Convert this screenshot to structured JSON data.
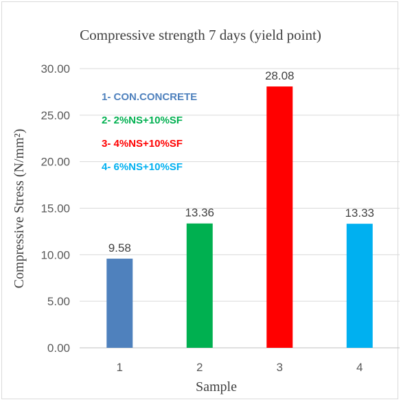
{
  "chart_data": {
    "type": "bar",
    "title": "Compressive strength 7 days (yield point)",
    "xlabel": "Sample",
    "ylabel": "Compressive Stress (N/mm²)",
    "categories": [
      "1",
      "2",
      "3",
      "4"
    ],
    "values": [
      9.58,
      13.36,
      28.08,
      13.33
    ],
    "data_labels": [
      "9.58",
      "13.36",
      "28.08",
      "13.33"
    ],
    "colors": [
      "#4f81bd",
      "#00b050",
      "#ff0000",
      "#00b0f0"
    ],
    "ylim": [
      0,
      30
    ],
    "yticks": [
      "0.00",
      "5.00",
      "10.00",
      "15.00",
      "20.00",
      "25.00",
      "30.00"
    ],
    "grid": "horizontal",
    "legend": {
      "placement": "top-left",
      "entries": [
        {
          "label": "1- CON.CONCRETE",
          "color": "#4f81bd"
        },
        {
          "label": "2- 2%NS+10%SF",
          "color": "#00b050"
        },
        {
          "label": "3- 4%NS+10%SF",
          "color": "#ff0000"
        },
        {
          "label": "4- 6%NS+10%SF",
          "color": "#00b0f0"
        }
      ]
    }
  }
}
